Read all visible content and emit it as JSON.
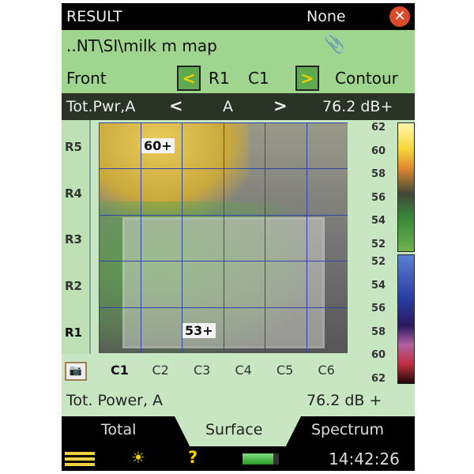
{
  "header": {
    "title": "RESULT",
    "mode": "None",
    "close_icon": "close-icon"
  },
  "path": {
    "text": "..NT\\SI\\milk m map",
    "icon": "paperclip-icon"
  },
  "position": {
    "side": "Front",
    "row": "R1",
    "col": "C1",
    "view": "Contour",
    "prev": "<",
    "next": ">"
  },
  "parameter": {
    "name": "Tot.Pwr,A",
    "prev": "<",
    "weighting": "A",
    "next": ">",
    "value": "76.2 dB+"
  },
  "map": {
    "row_labels": [
      "R5",
      "R4",
      "R3",
      "R2",
      "R1"
    ],
    "col_labels": [
      "C1",
      "C2",
      "C3",
      "C4",
      "C5",
      "C6"
    ],
    "selected": {
      "row": "R1",
      "col": "C1"
    },
    "max_label": "60+",
    "min_label": "53+"
  },
  "scale": {
    "upper": [
      "62",
      "60",
      "58",
      "56",
      "54",
      "52"
    ],
    "lower": [
      "52",
      "54",
      "56",
      "58",
      "60",
      "62"
    ]
  },
  "readout": {
    "label": "Tot. Power, A",
    "value": "76.2 dB +"
  },
  "tabs": [
    {
      "label": "Total"
    },
    {
      "label": "Surface",
      "active": true
    },
    {
      "label": "Spectrum"
    }
  ],
  "status": {
    "time": "14:42:26",
    "battery_level": 0.85,
    "help": "?"
  },
  "colors": {
    "accent": "#9fd58f",
    "grid": "#3046a8",
    "nav": "#f5d000"
  }
}
